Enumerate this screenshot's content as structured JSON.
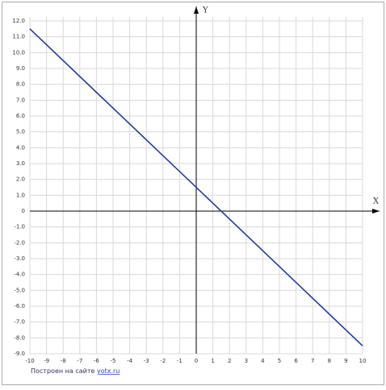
{
  "chart_data": {
    "type": "line",
    "x": [
      -10,
      10
    ],
    "series": [
      {
        "color": "#1f3aa0",
        "values": [
          11.5,
          -8.5
        ]
      }
    ],
    "xlabel": "X",
    "ylabel": "Y",
    "xlim": [
      -10,
      10
    ],
    "ylim": [
      -9,
      12
    ],
    "xticks": [
      -10,
      -9,
      -8,
      -7,
      -6,
      -5,
      -4,
      -3,
      -2,
      -1,
      0,
      1,
      2,
      3,
      4,
      5,
      6,
      7,
      8,
      9,
      10
    ],
    "yticks": [
      {
        "value": -9,
        "label": "-9.0"
      },
      {
        "value": -8,
        "label": "-8.0"
      },
      {
        "value": -7,
        "label": "-7.0"
      },
      {
        "value": -6,
        "label": "-6.0"
      },
      {
        "value": -5,
        "label": "-5.0"
      },
      {
        "value": -4,
        "label": "-4.0"
      },
      {
        "value": -3,
        "label": "-3.0"
      },
      {
        "value": -2,
        "label": "-2.0"
      },
      {
        "value": -1,
        "label": "-1.0"
      },
      0,
      {
        "value": 1,
        "label": "1.0"
      },
      {
        "value": 2,
        "label": "2.0"
      },
      {
        "value": 3,
        "label": "3.0"
      },
      {
        "value": 4,
        "label": "4.0"
      },
      {
        "value": 5,
        "label": "5.0"
      },
      {
        "value": 6,
        "label": "6.0"
      },
      {
        "value": 7,
        "label": "7.0"
      },
      {
        "value": 8,
        "label": "8.0"
      },
      {
        "value": 9,
        "label": "9.0"
      },
      {
        "value": 10,
        "label": "10.0"
      },
      {
        "value": 11,
        "label": "11.0"
      },
      {
        "value": 12,
        "label": "12.0"
      }
    ],
    "grid": true,
    "credit": "Построен на сайте",
    "credit_link": "yotx.ru"
  }
}
